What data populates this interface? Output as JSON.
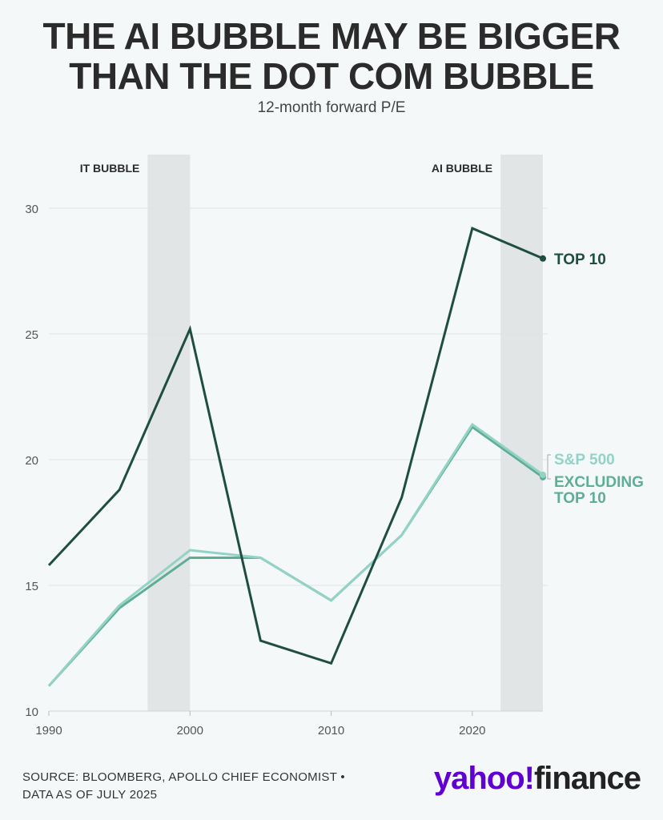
{
  "title_line1": "THE AI BUBBLE MAY BE BIGGER",
  "title_line2": "THAN THE DOT COM BUBBLE",
  "subtitle": "12-month forward P/E",
  "source_line1": "SOURCE: BLOOMBERG, APOLLO CHIEF ECONOMIST •",
  "source_line2": "DATA AS OF JULY 2025",
  "logo_text": "yahoo!finance",
  "logo_part1": "yahoo!",
  "logo_part2": "finance",
  "colors": {
    "top10": "#1f4d40",
    "sp500": "#93d3c6",
    "excluding": "#5fae94",
    "shade": "#e1e5e6",
    "grid": "#e0e4e6"
  },
  "chart_data": {
    "type": "line",
    "title": "THE AI BUBBLE MAY BE BIGGER THAN THE DOT COM BUBBLE",
    "subtitle": "12-month forward P/E",
    "xlabel": "",
    "ylabel": "",
    "x": [
      1990,
      1995,
      2000,
      2005,
      2010,
      2015,
      2020,
      2025
    ],
    "xlim": [
      1990,
      2025
    ],
    "ylim": [
      10,
      30
    ],
    "xticks": [
      1990,
      2000,
      2010,
      2020
    ],
    "yticks": [
      10,
      15,
      20,
      25,
      30
    ],
    "grid": true,
    "series": [
      {
        "name": "TOP 10",
        "key": "top10",
        "values": [
          15.8,
          18.8,
          25.2,
          12.8,
          11.9,
          18.5,
          29.2,
          28.0
        ]
      },
      {
        "name": "S&P 500",
        "key": "sp500",
        "values": [
          11.0,
          14.2,
          16.4,
          16.1,
          14.4,
          17.0,
          21.4,
          19.4
        ]
      },
      {
        "name": "EXCLUDING TOP 10",
        "key": "excluding",
        "values": [
          11.0,
          14.1,
          16.1,
          16.1,
          14.4,
          17.0,
          21.3,
          19.3
        ]
      }
    ],
    "shaded_regions": [
      {
        "label": "IT BUBBLE",
        "from": 1997,
        "to": 2000
      },
      {
        "label": "AI BUBBLE",
        "from": 2022,
        "to": 2025
      }
    ],
    "legend": {
      "placement": "right-end",
      "labels": [
        "TOP 10",
        "S&P 500",
        "EXCLUDING",
        "TOP 10"
      ]
    }
  }
}
